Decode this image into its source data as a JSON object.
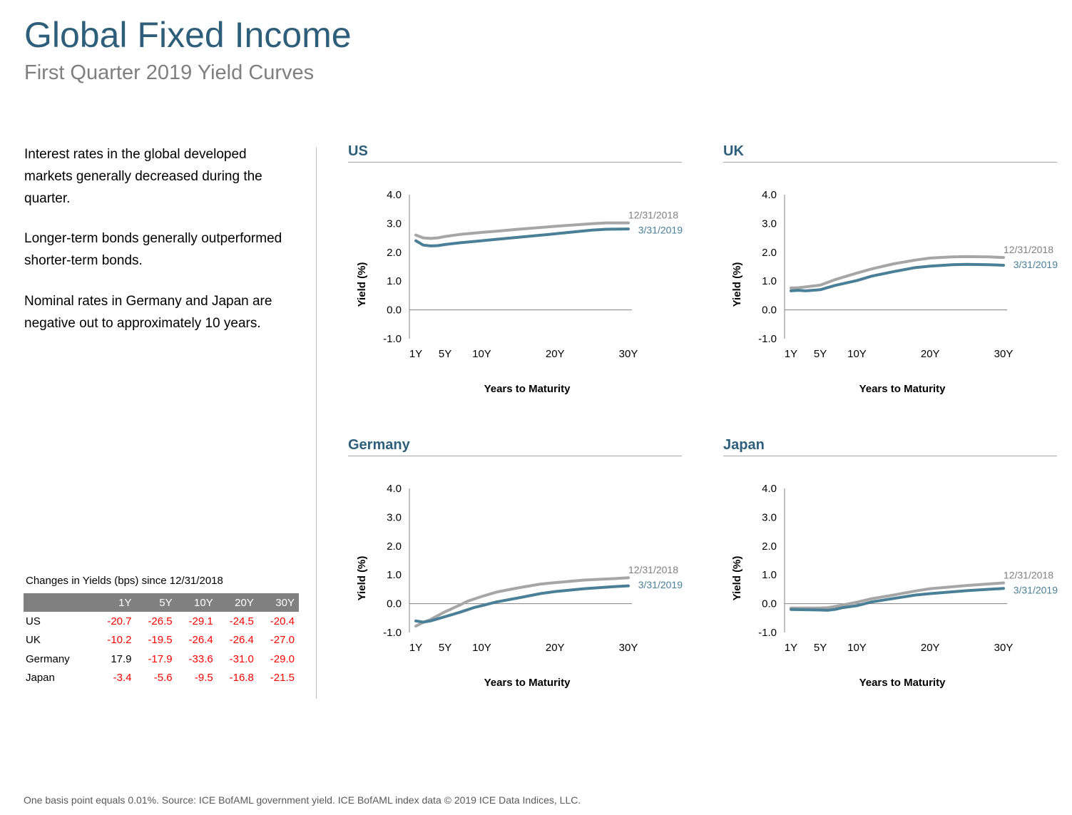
{
  "header": {
    "title": "Global Fixed Income",
    "subtitle": "First Quarter 2019 Yield Curves"
  },
  "commentary": {
    "paragraphs": [
      "Interest rates in the global developed markets generally decreased during the quarter.",
      "Longer-term bonds generally outperformed shorter-term bonds.",
      "Nominal rates in Germany and Japan are negative out to approximately 10 years."
    ]
  },
  "yield_table": {
    "title": "Changes in Yields (bps) since 12/31/2018",
    "columns": [
      "",
      "1Y",
      "5Y",
      "10Y",
      "20Y",
      "30Y"
    ],
    "rows": [
      {
        "country": "US",
        "values": [
          "-20.7",
          "-26.5",
          "-29.1",
          "-24.5",
          "-20.4"
        ]
      },
      {
        "country": "UK",
        "values": [
          "-10.2",
          "-19.5",
          "-26.4",
          "-26.4",
          "-27.0"
        ]
      },
      {
        "country": "Germany",
        "values": [
          "17.9",
          "-17.9",
          "-33.6",
          "-31.0",
          "-29.0"
        ]
      },
      {
        "country": "Japan",
        "values": [
          "-3.4",
          "-5.6",
          "-9.5",
          "-16.8",
          "-21.5"
        ]
      }
    ],
    "colors": {
      "header_bg": "#808080",
      "negative": "#ff0000",
      "positive": "#000000"
    }
  },
  "footnote": "One basis point equals 0.01%. Source: ICE BofAML government yield. ICE BofAML index data © 2019 ICE Data Indices, LLC.",
  "colors": {
    "accent": "#2e5f7a",
    "series_prior": "#a6a6a6",
    "series_current": "#4a7f98"
  },
  "chart_data": [
    {
      "type": "line",
      "title": "US",
      "xlabel": "Years to Maturity",
      "ylabel": "Yield (%)",
      "ylim": [
        -1.0,
        4.0
      ],
      "yticks": [
        "4.0",
        "3.0",
        "2.0",
        "1.0",
        "0.0",
        "-1.0"
      ],
      "xlim": [
        1,
        30
      ],
      "xticks": [
        {
          "v": 1,
          "label": "1Y"
        },
        {
          "v": 5,
          "label": "5Y"
        },
        {
          "v": 10,
          "label": "10Y"
        },
        {
          "v": 20,
          "label": "20Y"
        },
        {
          "v": 30,
          "label": "30Y"
        }
      ],
      "series": [
        {
          "name": "12/31/2018",
          "x": [
            1,
            2,
            3,
            4,
            5,
            7,
            10,
            12,
            15,
            20,
            25,
            27,
            30
          ],
          "values": [
            2.6,
            2.5,
            2.48,
            2.5,
            2.55,
            2.62,
            2.69,
            2.73,
            2.8,
            2.9,
            2.99,
            3.02,
            3.02
          ]
        },
        {
          "name": "3/31/2019",
          "x": [
            1,
            2,
            3,
            4,
            5,
            7,
            10,
            12,
            15,
            20,
            25,
            27,
            30
          ],
          "values": [
            2.4,
            2.25,
            2.22,
            2.23,
            2.27,
            2.33,
            2.4,
            2.45,
            2.52,
            2.64,
            2.77,
            2.8,
            2.81
          ]
        }
      ]
    },
    {
      "type": "line",
      "title": "UK",
      "xlabel": "Years to Maturity",
      "ylabel": "Yield (%)",
      "ylim": [
        -1.0,
        4.0
      ],
      "yticks": [
        "4.0",
        "3.0",
        "2.0",
        "1.0",
        "0.0",
        "-1.0"
      ],
      "xlim": [
        1,
        30
      ],
      "xticks": [
        {
          "v": 1,
          "label": "1Y"
        },
        {
          "v": 5,
          "label": "5Y"
        },
        {
          "v": 10,
          "label": "10Y"
        },
        {
          "v": 20,
          "label": "20Y"
        },
        {
          "v": 30,
          "label": "30Y"
        }
      ],
      "series": [
        {
          "name": "12/31/2018",
          "x": [
            1,
            2,
            3,
            5,
            7,
            10,
            12,
            15,
            18,
            20,
            23,
            25,
            28,
            30
          ],
          "values": [
            0.76,
            0.77,
            0.8,
            0.86,
            1.05,
            1.28,
            1.42,
            1.6,
            1.73,
            1.8,
            1.84,
            1.85,
            1.84,
            1.82
          ]
        },
        {
          "name": "3/31/2019",
          "x": [
            1,
            2,
            3,
            5,
            7,
            10,
            12,
            15,
            18,
            20,
            23,
            25,
            28,
            30
          ],
          "values": [
            0.66,
            0.68,
            0.66,
            0.7,
            0.85,
            1.02,
            1.17,
            1.33,
            1.47,
            1.52,
            1.57,
            1.58,
            1.57,
            1.55
          ]
        }
      ]
    },
    {
      "type": "line",
      "title": "Germany",
      "xlabel": "Years to Maturity",
      "ylabel": "Yield (%)",
      "ylim": [
        -1.0,
        4.0
      ],
      "yticks": [
        "4.0",
        "3.0",
        "2.0",
        "1.0",
        "0.0",
        "-1.0"
      ],
      "xlim": [
        1,
        30
      ],
      "xticks": [
        {
          "v": 1,
          "label": "1Y"
        },
        {
          "v": 5,
          "label": "5Y"
        },
        {
          "v": 10,
          "label": "10Y"
        },
        {
          "v": 20,
          "label": "20Y"
        },
        {
          "v": 30,
          "label": "30Y"
        }
      ],
      "series": [
        {
          "name": "12/31/2018",
          "x": [
            1,
            2,
            3,
            5,
            7,
            8,
            10,
            12,
            15,
            18,
            20,
            24,
            28,
            30
          ],
          "values": [
            -0.78,
            -0.65,
            -0.55,
            -0.28,
            -0.05,
            0.08,
            0.25,
            0.4,
            0.55,
            0.68,
            0.73,
            0.82,
            0.87,
            0.9
          ]
        },
        {
          "name": "3/31/2019",
          "x": [
            1,
            2,
            3,
            5,
            7,
            9,
            10,
            12,
            15,
            18,
            20,
            24,
            28,
            30
          ],
          "values": [
            -0.6,
            -0.64,
            -0.6,
            -0.45,
            -0.3,
            -0.13,
            -0.07,
            0.06,
            0.2,
            0.35,
            0.42,
            0.52,
            0.59,
            0.62
          ]
        }
      ]
    },
    {
      "type": "line",
      "title": "Japan",
      "xlabel": "Years to Maturity",
      "ylabel": "Yield (%)",
      "ylim": [
        -1.0,
        4.0
      ],
      "yticks": [
        "4.0",
        "3.0",
        "2.0",
        "1.0",
        "0.0",
        "-1.0"
      ],
      "xlim": [
        1,
        30
      ],
      "xticks": [
        {
          "v": 1,
          "label": "1Y"
        },
        {
          "v": 5,
          "label": "5Y"
        },
        {
          "v": 10,
          "label": "10Y"
        },
        {
          "v": 20,
          "label": "20Y"
        },
        {
          "v": 30,
          "label": "30Y"
        }
      ],
      "series": [
        {
          "name": "12/31/2018",
          "x": [
            1,
            3,
            5,
            6,
            7,
            8,
            10,
            12,
            15,
            18,
            20,
            25,
            30
          ],
          "values": [
            -0.15,
            -0.15,
            -0.15,
            -0.14,
            -0.1,
            -0.05,
            0.05,
            0.17,
            0.3,
            0.44,
            0.52,
            0.63,
            0.72
          ]
        },
        {
          "name": "3/31/2019",
          "x": [
            1,
            3,
            5,
            6,
            7,
            8,
            10,
            12,
            15,
            18,
            20,
            25,
            30
          ],
          "values": [
            -0.2,
            -0.21,
            -0.22,
            -0.23,
            -0.2,
            -0.14,
            -0.07,
            0.06,
            0.18,
            0.3,
            0.35,
            0.45,
            0.53
          ]
        }
      ]
    }
  ]
}
